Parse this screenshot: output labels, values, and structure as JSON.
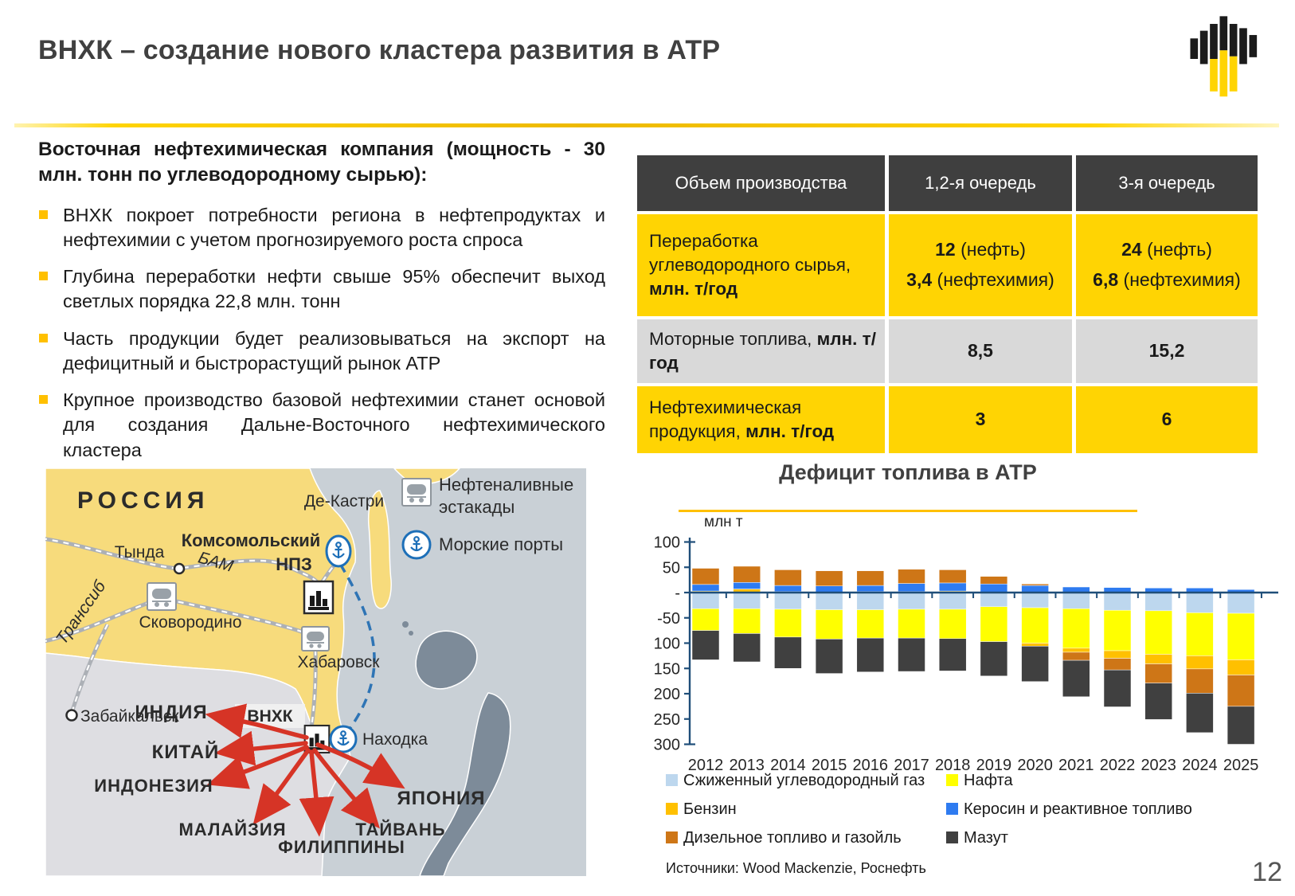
{
  "slide": {
    "title": "ВНХК – создание нового кластера развития в АТР",
    "page_number": "12"
  },
  "colors": {
    "brand_yellow": "#FFD403",
    "title_gray": "#404040",
    "bullet_marker": "#FFC000",
    "table_header_bg": "#3F3F3F",
    "table_row_yellow": "#FFD403",
    "table_row_gray": "#D9D9D9",
    "chart_axis_blue": "#1F4E79",
    "chart_underline": "#FFC000",
    "map_sea": "#C9D0D6",
    "map_russia": "#F7DB7C",
    "map_neighbors": "#DEDEE2",
    "map_japan": "#7D8B99",
    "map_arrow_red": "#D63426",
    "map_label_red": "#BE3A2E",
    "map_route_blue": "#2E74B5"
  },
  "left_panel": {
    "heading": "Восточная нефтехимическая компания (мощность - 30 млн. тонн по углеводородному сырью):",
    "bullets": [
      "ВНХК покроет потребности региона в нефтепродуктах и нефтехимии с учетом прогнозируемого роста спроса",
      "Глубина переработки нефти свыше 95% обеспечит выход светлых порядка 22,8 млн. тонн",
      "Часть продукции будет реализовываться на экспорт на дефицитный и быстрорастущий рынок АТР",
      "Крупное производство базовой нефтехимии станет основой для создания Дальне-Восточного нефтехимического кластера"
    ]
  },
  "production_table": {
    "col_headers": [
      "Объем производства",
      "1,2-я очередь",
      "3-я очередь"
    ],
    "rows": [
      {
        "label": "Переработка углеводородного сырья,",
        "unit": "млн. т/год",
        "c1a_num": "12",
        "c1a_txt": "(нефть)",
        "c1b_num": "3,4",
        "c1b_txt": "(нефтехимия)",
        "c2a_num": "24",
        "c2a_txt": "(нефть)",
        "c2b_num": "6,8",
        "c2b_txt": "(нефтехимия)"
      },
      {
        "label": "Моторные топлива,",
        "unit": "млн. т/год",
        "c1": "8,5",
        "c2": "15,2"
      },
      {
        "label": "Нефтехимическая продукция,",
        "unit": "млн. т/год",
        "c1": "3",
        "c2": "6"
      }
    ]
  },
  "map": {
    "region_label": "РОССИЯ",
    "legend": {
      "estacada_line1": "Нефтеналивные",
      "estacada_line2": "эстакады",
      "ports": "Морские порты"
    },
    "cities": {
      "dekastri": "Де-Кастри",
      "komsomolsky_line1": "Комсомольский",
      "komsomolsky_line2": "НПЗ",
      "tynda": "Тында",
      "bam": "БАМ",
      "skovorodino": "Сковородино",
      "transsib": "Транссиб",
      "khabarovsk": "Хабаровск",
      "zabaikalsk": "Забайкальск",
      "nakhodka": "Находка"
    },
    "plant_label": "ВНХК",
    "destinations": {
      "india": "ИНДИЯ",
      "china": "КИТАЙ",
      "indonesia": "ИНДОНЕЗИЯ",
      "malaysia": "МАЛАЙЗИЯ",
      "philippines": "ФИЛИППИНЫ",
      "taiwan": "ТАЙВАНЬ",
      "japan": "ЯПОНИЯ"
    }
  },
  "chart_data": {
    "type": "bar",
    "stacked": true,
    "title": "Дефицит топлива в АТР",
    "unit": "млн т",
    "categories": [
      "2012",
      "2013",
      "2014",
      "2015",
      "2016",
      "2017",
      "2018",
      "2019",
      "2020",
      "2021",
      "2022",
      "2023",
      "2024",
      "2025"
    ],
    "ylim": [
      -300,
      100
    ],
    "yticks": [
      "100",
      "50",
      "-",
      "-50",
      "-100",
      "-150",
      "-200",
      "-250",
      "-300"
    ],
    "ytick_values": [
      100,
      50,
      0,
      -50,
      -100,
      -150,
      -200,
      -250,
      -300
    ],
    "grid": false,
    "legend_position": "bottom",
    "series": [
      {
        "name": "Сжиженный углеводородный газ",
        "color": "#BDD7EE",
        "values": [
          -32,
          -32,
          -33,
          -34,
          -34,
          -33,
          -33,
          -28,
          -30,
          -32,
          -35,
          -36,
          -40,
          -41
        ]
      },
      {
        "name": "Нафта",
        "color": "#FFFF00",
        "values": [
          -43,
          -49,
          -55,
          -58,
          -56,
          -57,
          -58,
          -69,
          -70,
          -78,
          -80,
          -86,
          -85,
          -92
        ]
      },
      {
        "name": "Бензин",
        "color": "#FFC000",
        "values": [
          3,
          7,
          2,
          1,
          2,
          2,
          3,
          1,
          -6,
          -8,
          -15,
          -19,
          -26,
          -30
        ]
      },
      {
        "name": "Керосин и реактивное топливо",
        "color": "#2E7BF0",
        "values": [
          13,
          13,
          12,
          12,
          12,
          16,
          16,
          16,
          14,
          11,
          10,
          9,
          9,
          6
        ]
      },
      {
        "name": "Дизельное топливо и газойль",
        "color": "#CE7617",
        "values": [
          32,
          32,
          31,
          30,
          29,
          28,
          26,
          15,
          3,
          -16,
          -23,
          -38,
          -48,
          -62
        ]
      },
      {
        "name": "Мазут",
        "color": "#404040",
        "values": [
          -58,
          -56,
          -62,
          -68,
          -67,
          -66,
          -64,
          -68,
          -70,
          -72,
          -73,
          -72,
          -78,
          -75
        ]
      }
    ]
  },
  "footer": {
    "sources": "Источники:  Wood Mackenzie, Роснефть"
  }
}
